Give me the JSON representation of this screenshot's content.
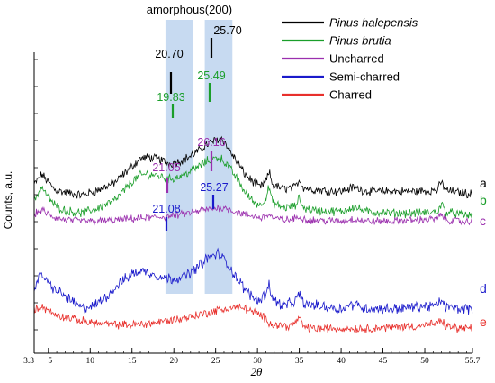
{
  "chart_data": {
    "type": "line",
    "title": "",
    "xlabel": "2θ",
    "ylabel": "Counts, a.u.",
    "xlim": [
      3.3,
      55.7
    ],
    "x_ticks": [
      "3.3",
      "5",
      "10",
      "15",
      "20",
      "25",
      "30",
      "35",
      "40",
      "45",
      "50",
      "55.7"
    ],
    "grid": false,
    "y_tick_labels": false,
    "legend_position": "top-right",
    "bands": [
      {
        "name": "amorphous-band",
        "label": "amorphous",
        "x_range": [
          19.0,
          22.3
        ],
        "color": "#c7daf1"
      },
      {
        "name": "crystalline-200-band",
        "label": "(200)",
        "x_range": [
          23.7,
          27.0
        ],
        "color": "#c7daf1"
      }
    ],
    "series": [
      {
        "name": "Pinus halepensis",
        "italic": true,
        "curve_label": "a",
        "color": "#000000",
        "label_color": "#000000",
        "points": [
          [
            3.3,
            0.64
          ],
          [
            4.2,
            0.72
          ],
          [
            5.0,
            0.66
          ],
          [
            5.8,
            0.6
          ],
          [
            7,
            0.58
          ],
          [
            9,
            0.56
          ],
          [
            11,
            0.6
          ],
          [
            13,
            0.66
          ],
          [
            15,
            0.78
          ],
          [
            16,
            0.84
          ],
          [
            17,
            0.85
          ],
          [
            18.5,
            0.83
          ],
          [
            19.5,
            0.8
          ],
          [
            20.7,
            0.82
          ],
          [
            22,
            0.86
          ],
          [
            23,
            0.9
          ],
          [
            24,
            0.95
          ],
          [
            25.0,
            0.98
          ],
          [
            25.7,
            1.0
          ],
          [
            26.5,
            0.92
          ],
          [
            27.5,
            0.82
          ],
          [
            28.5,
            0.72
          ],
          [
            29.5,
            0.66
          ],
          [
            30.3,
            0.62
          ],
          [
            31.0,
            0.66
          ],
          [
            31.4,
            0.74
          ],
          [
            31.8,
            0.64
          ],
          [
            33,
            0.61
          ],
          [
            34.5,
            0.62
          ],
          [
            35.0,
            0.68
          ],
          [
            35.5,
            0.62
          ],
          [
            37,
            0.6
          ],
          [
            40,
            0.59
          ],
          [
            41.5,
            0.62
          ],
          [
            43,
            0.59
          ],
          [
            46,
            0.59
          ],
          [
            49,
            0.59
          ],
          [
            51.5,
            0.6
          ],
          [
            52.0,
            0.66
          ],
          [
            52.5,
            0.6
          ],
          [
            54,
            0.58
          ],
          [
            55.7,
            0.57
          ]
        ]
      },
      {
        "name": "Pinus brutia",
        "italic": true,
        "curve_label": "b",
        "color": "#1a9e2a",
        "label_color": "#1a9e2a",
        "points": [
          [
            3.3,
            0.58
          ],
          [
            4.2,
            0.68
          ],
          [
            5.0,
            0.6
          ],
          [
            5.8,
            0.54
          ],
          [
            7,
            0.5
          ],
          [
            9,
            0.48
          ],
          [
            11,
            0.52
          ],
          [
            13,
            0.58
          ],
          [
            15,
            0.72
          ],
          [
            16,
            0.77
          ],
          [
            17,
            0.78
          ],
          [
            18.5,
            0.76
          ],
          [
            19.5,
            0.74
          ],
          [
            20.7,
            0.76
          ],
          [
            22,
            0.8
          ],
          [
            23,
            0.84
          ],
          [
            24,
            0.88
          ],
          [
            25.0,
            0.9
          ],
          [
            25.5,
            0.91
          ],
          [
            26.5,
            0.84
          ],
          [
            27.5,
            0.75
          ],
          [
            28.5,
            0.64
          ],
          [
            29.5,
            0.57
          ],
          [
            30.3,
            0.54
          ],
          [
            31.0,
            0.6
          ],
          [
            31.4,
            0.68
          ],
          [
            31.8,
            0.56
          ],
          [
            33,
            0.52
          ],
          [
            34.5,
            0.53
          ],
          [
            35.0,
            0.6
          ],
          [
            35.5,
            0.52
          ],
          [
            37,
            0.5
          ],
          [
            40,
            0.49
          ],
          [
            41.5,
            0.53
          ],
          [
            43,
            0.49
          ],
          [
            46,
            0.48
          ],
          [
            49,
            0.48
          ],
          [
            51.5,
            0.49
          ],
          [
            52.0,
            0.55
          ],
          [
            52.5,
            0.49
          ],
          [
            54,
            0.47
          ],
          [
            55.7,
            0.46
          ]
        ]
      },
      {
        "name": "Uncharred",
        "italic": false,
        "curve_label": "c",
        "color": "#9b2fae",
        "label_color": "#9b2fae",
        "points": [
          [
            3.3,
            0.52
          ],
          [
            4.2,
            0.56
          ],
          [
            5.0,
            0.52
          ],
          [
            5.8,
            0.49
          ],
          [
            7,
            0.47
          ],
          [
            9,
            0.46
          ],
          [
            11,
            0.46
          ],
          [
            13,
            0.47
          ],
          [
            15,
            0.48
          ],
          [
            17,
            0.49
          ],
          [
            19,
            0.5
          ],
          [
            21,
            0.52
          ],
          [
            23,
            0.55
          ],
          [
            24.5,
            0.57
          ],
          [
            25.5,
            0.58
          ],
          [
            26.5,
            0.57
          ],
          [
            27.5,
            0.54
          ],
          [
            29,
            0.51
          ],
          [
            30.5,
            0.49
          ],
          [
            31.4,
            0.52
          ],
          [
            32,
            0.48
          ],
          [
            34,
            0.47
          ],
          [
            35.0,
            0.5
          ],
          [
            36,
            0.47
          ],
          [
            40,
            0.46
          ],
          [
            41.5,
            0.48
          ],
          [
            43,
            0.46
          ],
          [
            46,
            0.46
          ],
          [
            49,
            0.47
          ],
          [
            51.5,
            0.48
          ],
          [
            52.0,
            0.52
          ],
          [
            52.5,
            0.47
          ],
          [
            54,
            0.46
          ],
          [
            55.7,
            0.45
          ]
        ]
      },
      {
        "name": "Semi-charred",
        "italic": false,
        "curve_label": "d",
        "color": "#1a1acb",
        "label_color": "#1a1acb",
        "points": [
          [
            3.3,
            0.34
          ],
          [
            4.2,
            0.42
          ],
          [
            5.0,
            0.36
          ],
          [
            5.8,
            0.32
          ],
          [
            7,
            0.28
          ],
          [
            8,
            0.24
          ],
          [
            9,
            0.2
          ],
          [
            10.5,
            0.22
          ],
          [
            12,
            0.28
          ],
          [
            13.5,
            0.36
          ],
          [
            15,
            0.42
          ],
          [
            16,
            0.44
          ],
          [
            17,
            0.43
          ],
          [
            18.5,
            0.4
          ],
          [
            19.5,
            0.39
          ],
          [
            21.08,
            0.4
          ],
          [
            22,
            0.43
          ],
          [
            23,
            0.47
          ],
          [
            24,
            0.52
          ],
          [
            25.27,
            0.55
          ],
          [
            26.2,
            0.5
          ],
          [
            27.2,
            0.42
          ],
          [
            28.5,
            0.32
          ],
          [
            29.5,
            0.27
          ],
          [
            30.3,
            0.25
          ],
          [
            31.0,
            0.3
          ],
          [
            31.4,
            0.36
          ],
          [
            31.8,
            0.26
          ],
          [
            33,
            0.22
          ],
          [
            34.5,
            0.24
          ],
          [
            35.0,
            0.3
          ],
          [
            35.5,
            0.23
          ],
          [
            37,
            0.22
          ],
          [
            40,
            0.2
          ],
          [
            41.5,
            0.23
          ],
          [
            43,
            0.2
          ],
          [
            46,
            0.2
          ],
          [
            49,
            0.21
          ],
          [
            51.5,
            0.22
          ],
          [
            52.0,
            0.26
          ],
          [
            52.5,
            0.21
          ],
          [
            54,
            0.2
          ],
          [
            55.7,
            0.2
          ]
        ]
      },
      {
        "name": "Charred",
        "italic": false,
        "curve_label": "e",
        "color": "#e8302c",
        "label_color": "#e8302c",
        "points": [
          [
            3.3,
            0.16
          ],
          [
            4.2,
            0.2
          ],
          [
            5.0,
            0.16
          ],
          [
            5.8,
            0.13
          ],
          [
            7,
            0.11
          ],
          [
            9,
            0.08
          ],
          [
            11,
            0.06
          ],
          [
            13,
            0.05
          ],
          [
            15,
            0.05
          ],
          [
            17,
            0.06
          ],
          [
            19,
            0.08
          ],
          [
            21,
            0.1
          ],
          [
            23,
            0.13
          ],
          [
            25,
            0.16
          ],
          [
            26.5,
            0.18
          ],
          [
            27.5,
            0.19
          ],
          [
            28.5,
            0.18
          ],
          [
            29.5,
            0.15
          ],
          [
            30.5,
            0.12
          ],
          [
            31.2,
            0.08
          ],
          [
            32,
            0.05
          ],
          [
            34,
            0.04
          ],
          [
            35.0,
            0.1
          ],
          [
            35.6,
            0.03
          ],
          [
            37,
            0.02
          ],
          [
            40,
            0.02
          ],
          [
            43,
            0.02
          ],
          [
            46,
            0.03
          ],
          [
            49,
            0.04
          ],
          [
            51.5,
            0.06
          ],
          [
            52.0,
            0.08
          ],
          [
            52.5,
            0.04
          ],
          [
            54,
            0.02
          ],
          [
            55.7,
            0.02
          ]
        ]
      }
    ],
    "peak_annotations": [
      {
        "text": "20.70",
        "x": 20.7,
        "y": 0.82,
        "color": "#000000"
      },
      {
        "text": "25.70",
        "x": 25.7,
        "y": 1.0,
        "color": "#000000"
      },
      {
        "text": "19.83",
        "x": 19.83,
        "y": 0.75,
        "color": "#1a9e2a"
      },
      {
        "text": "25.49",
        "x": 25.49,
        "y": 0.91,
        "color": "#1a9e2a"
      },
      {
        "text": "21.05",
        "x": 21.05,
        "y": 0.52,
        "color": "#9b2fae"
      },
      {
        "text": "26.16",
        "x": 26.16,
        "y": 0.58,
        "color": "#9b2fae"
      },
      {
        "text": "21.08",
        "x": 21.08,
        "y": 0.4,
        "color": "#1a1acb"
      },
      {
        "text": "25.27",
        "x": 25.27,
        "y": 0.55,
        "color": "#1a1acb"
      }
    ]
  }
}
